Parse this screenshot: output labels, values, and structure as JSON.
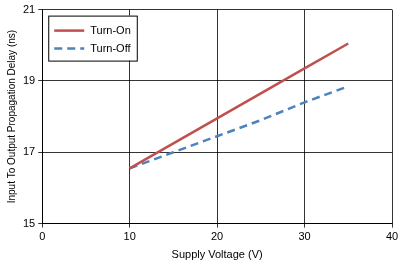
{
  "chart_data": {
    "type": "line",
    "x_label": "Supply Voltage (V)",
    "y_label": "Input To Output Propagation Delay (ns)",
    "x": [
      10,
      15,
      20,
      25,
      30,
      35
    ],
    "series": [
      {
        "name": "Turn-On",
        "color": "#c0504d",
        "line_style": "solid",
        "values": [
          16.55,
          17.25,
          17.95,
          18.65,
          19.35,
          20.05
        ]
      },
      {
        "name": "Turn-Off",
        "color": "#4f81bd",
        "line_style": "dashed",
        "values": [
          16.55,
          17.0,
          17.45,
          17.9,
          18.4,
          18.85
        ]
      }
    ],
    "xlim": [
      0,
      40
    ],
    "xticks": [
      0,
      10,
      20,
      30,
      40
    ],
    "ylim": [
      15,
      21
    ],
    "yticks": [
      15,
      17,
      19,
      21
    ],
    "grid": true,
    "legend": "top-left"
  }
}
